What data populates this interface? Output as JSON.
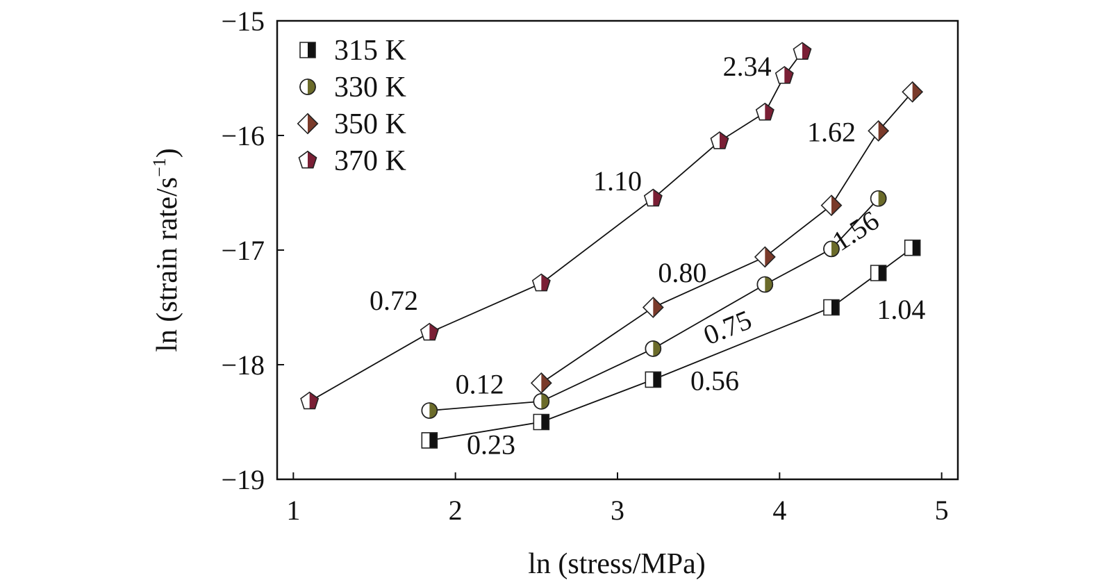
{
  "chart_data": {
    "type": "line",
    "xlabel": "ln (stress/MPa)",
    "ylabel_prefix": "ln (strain rate/s",
    "ylabel_sup": "−1",
    "ylabel_suffix": ")",
    "xlim": [
      0.9,
      5.1
    ],
    "ylim": [
      -19,
      -15
    ],
    "xticks": [
      1,
      2,
      3,
      4,
      5
    ],
    "xtick_labels": [
      "1",
      "2",
      "3",
      "4",
      "5"
    ],
    "yticks": [
      -19,
      -18,
      -17,
      -16,
      -15
    ],
    "ytick_labels": [
      "−19",
      "−18",
      "−17",
      "−16",
      "−15"
    ],
    "grid": false,
    "legend_position": "top-left",
    "series": [
      {
        "name": "315 K",
        "marker": "square-half",
        "color": "#111111",
        "x": [
          1.84,
          2.53,
          3.22,
          4.32,
          4.61,
          4.82
        ],
        "y": [
          -18.66,
          -18.5,
          -18.13,
          -17.5,
          -17.2,
          -16.98
        ]
      },
      {
        "name": "330 K",
        "marker": "circle-half",
        "color": "#6b6b2a",
        "x": [
          1.84,
          2.53,
          3.22,
          3.91,
          4.32,
          4.61
        ],
        "y": [
          -18.4,
          -18.32,
          -17.86,
          -17.3,
          -16.99,
          -16.55
        ]
      },
      {
        "name": "350 K",
        "marker": "diamond-half",
        "color": "#7a3a2a",
        "x": [
          2.53,
          3.22,
          3.91,
          4.32,
          4.61,
          4.82
        ],
        "y": [
          -18.16,
          -17.5,
          -17.06,
          -16.61,
          -15.96,
          -15.62
        ]
      },
      {
        "name": "370 K",
        "marker": "pentagon-half",
        "color": "#7a1f35",
        "x": [
          1.1,
          1.84,
          2.53,
          3.22,
          3.63,
          3.91,
          4.03,
          4.14
        ],
        "y": [
          -18.32,
          -17.72,
          -17.29,
          -16.55,
          -16.05,
          -15.8,
          -15.48,
          -15.27
        ]
      }
    ],
    "annotations": [
      {
        "text": "0.23",
        "x": 2.22,
        "y": -18.78,
        "color": "#111111",
        "rotate": 0
      },
      {
        "text": "0.56",
        "x": 3.6,
        "y": -18.22,
        "color": "#111111",
        "rotate": 0
      },
      {
        "text": "1.04",
        "x": 4.75,
        "y": -17.6,
        "color": "#111111",
        "rotate": 0
      },
      {
        "text": "0.12",
        "x": 2.15,
        "y": -18.25,
        "color": "#777777",
        "rotate": 0
      },
      {
        "text": "0.75",
        "x": 3.7,
        "y": -17.75,
        "color": "#777777",
        "rotate": -22
      },
      {
        "text": "1.56",
        "x": 4.5,
        "y": -16.9,
        "color": "#6b6b2a",
        "rotate": -33
      },
      {
        "text": "0.80",
        "x": 3.4,
        "y": -17.28,
        "color": "#333333",
        "rotate": 0
      },
      {
        "text": "1.62",
        "x": 4.32,
        "y": -16.05,
        "color": "#333333",
        "rotate": 0
      },
      {
        "text": "0.72",
        "x": 1.62,
        "y": -17.52,
        "color": "#6b1f35",
        "rotate": 0
      },
      {
        "text": "1.10",
        "x": 3.0,
        "y": -16.48,
        "color": "#6b1f35",
        "rotate": 0
      },
      {
        "text": "2.34",
        "x": 3.8,
        "y": -15.48,
        "color": "#6b1f35",
        "rotate": 0
      }
    ]
  }
}
